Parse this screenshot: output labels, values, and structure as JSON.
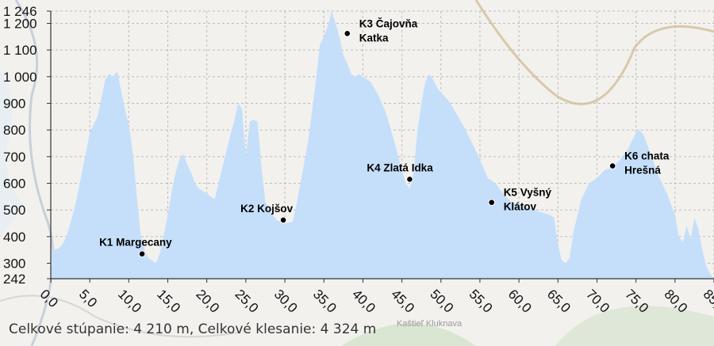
{
  "chart_data": {
    "type": "area",
    "xlabel": "",
    "ylabel": "",
    "xlim": [
      0,
      85
    ],
    "ylim": [
      242,
      1246
    ],
    "grid": true,
    "y_ticks": [
      242,
      300,
      400,
      500,
      600,
      700,
      800,
      900,
      1000,
      1100,
      1200,
      1246
    ],
    "y_tick_labels": [
      "242",
      "300",
      "400",
      "500",
      "600",
      "700",
      "800",
      "900",
      "1 000",
      "1 100",
      "1 200",
      "1 246"
    ],
    "x_ticks": [
      0,
      5,
      10,
      15,
      20,
      25,
      30,
      35,
      40,
      45,
      50,
      55,
      60,
      65,
      70,
      75,
      80,
      85
    ],
    "x_tick_labels": [
      "0,0",
      "5,0",
      "10,0",
      "15,0",
      "20,0",
      "25,0",
      "30,0",
      "35,0",
      "40,0",
      "45,0",
      "50,0",
      "55,0",
      "60,0",
      "65,0",
      "70,0",
      "75,0",
      "80,0",
      "85,0"
    ],
    "colors": {
      "fill": "#c5dffa",
      "grid": "#bdbdbd",
      "axis": "#333333"
    },
    "profile": {
      "x": [
        0,
        1,
        1.5,
        2,
        3,
        4,
        5,
        6,
        7,
        7.5,
        8,
        8.5,
        9,
        9.5,
        10,
        10.5,
        11,
        11.5,
        12,
        12.5,
        13,
        13.5,
        14,
        15,
        15.5,
        16,
        16.5,
        17,
        17.5,
        18,
        18.5,
        19,
        20,
        21,
        22,
        22.5,
        23,
        23.5,
        24,
        24.5,
        25,
        25.5,
        26,
        26.5,
        27,
        27.5,
        28,
        29,
        30,
        31,
        31.5,
        32,
        33,
        34,
        34.5,
        35,
        35.5,
        36,
        36.5,
        37,
        37.5,
        38,
        38.5,
        39,
        39.5,
        40,
        40.5,
        41,
        42,
        43,
        44,
        45,
        45.5,
        46,
        46.5,
        47,
        47.5,
        48,
        48.5,
        49,
        49.5,
        50,
        51,
        52,
        53,
        54,
        55,
        56,
        57,
        58,
        59,
        60,
        61,
        62,
        63,
        64,
        64.5,
        65,
        65.5,
        66,
        66.5,
        67,
        68,
        69,
        70,
        71,
        72,
        73,
        74,
        75,
        75.5,
        76,
        77,
        78,
        79,
        80,
        80.5,
        81,
        81.5,
        82,
        82.5,
        83,
        83.5,
        84,
        84.5,
        85
      ],
      "y": [
        350,
        355,
        370,
        400,
        500,
        640,
        790,
        850,
        990,
        1010,
        1000,
        1020,
        950,
        880,
        820,
        720,
        560,
        410,
        350,
        320,
        310,
        300,
        340,
        480,
        570,
        640,
        690,
        710,
        670,
        640,
        600,
        580,
        560,
        540,
        660,
        720,
        780,
        830,
        900,
        880,
        700,
        830,
        840,
        830,
        660,
        530,
        500,
        460,
        450,
        455,
        520,
        600,
        760,
        990,
        1120,
        1150,
        1190,
        1246,
        1200,
        1150,
        1080,
        1050,
        1010,
        1000,
        1010,
        1000,
        990,
        980,
        930,
        860,
        760,
        650,
        600,
        580,
        640,
        800,
        900,
        980,
        1010,
        990,
        960,
        940,
        910,
        860,
        810,
        750,
        690,
        620,
        600,
        560,
        530,
        520,
        510,
        500,
        490,
        480,
        470,
        370,
        310,
        300,
        320,
        420,
        540,
        600,
        620,
        650,
        660,
        690,
        730,
        790,
        800,
        780,
        700,
        620,
        560,
        480,
        400,
        380,
        440,
        390,
        470,
        430,
        350,
        290,
        260,
        242
      ]
    },
    "checkpoints": [
      {
        "x": 11.7,
        "y": 335,
        "label": [
          "K1 Margecany"
        ]
      },
      {
        "x": 29.8,
        "y": 462,
        "label": [
          "K2 Kojšov"
        ]
      },
      {
        "x": 38.0,
        "y": 1162,
        "label": [
          "K3 Čajovňa",
          "Katka"
        ]
      },
      {
        "x": 46.0,
        "y": 615,
        "label": [
          "K4 Zlatá Idka"
        ]
      },
      {
        "x": 56.5,
        "y": 528,
        "label": [
          "K5 Vyšný",
          "Klátov"
        ]
      },
      {
        "x": 72.0,
        "y": 665,
        "label": [
          "K6 chata",
          "Hrešná"
        ]
      }
    ]
  },
  "footer": {
    "stats": "Celkové stúpanie: 4 210 m, Celkové klesanie: 4 324 m"
  }
}
